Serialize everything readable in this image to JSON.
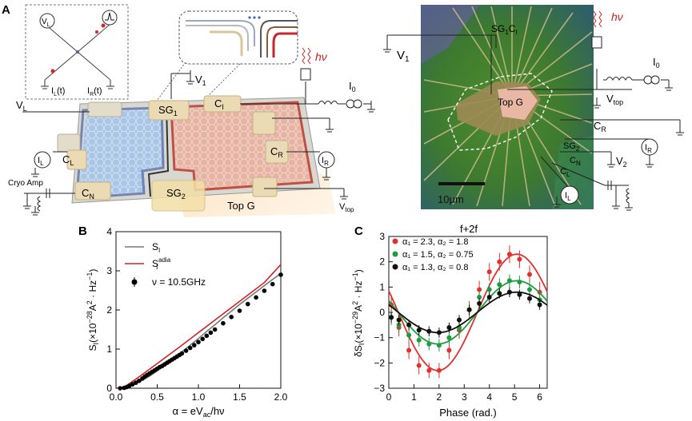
{
  "panels": {
    "a": {
      "label": "A",
      "inset_labels": {
        "VL": "V",
        "VL_sub": "L",
        "IL": "I",
        "IL_sub": "L",
        "IL_t": "(t)",
        "IR": "I",
        "IR_sub": "R",
        "IR_t": "(t)"
      },
      "device_labels": {
        "V_L": "V",
        "V_L_sub": "L",
        "V_1": "V",
        "V_1_sub": "1",
        "SG_1": "SG",
        "SG_1_sub": "1",
        "C_I": "C",
        "C_I_sub": "I",
        "hnu": "hν",
        "I_0": "I",
        "I_0_sub": "0",
        "I_L": "I",
        "I_L_sub": "L",
        "C_L": "C",
        "C_L_sub": "L",
        "C_R": "C",
        "C_R_sub": "R",
        "I_R": "I",
        "I_R_sub": "R",
        "cryo_amp": "Cryo Amp",
        "C_N": "C",
        "C_N_sub": "N",
        "SG_2": "SG",
        "SG_2_sub": "2",
        "top_g": "Top G",
        "V_top": "V",
        "V_top_sub": "top"
      },
      "micrograph_labels": {
        "V_1": "V",
        "V_1_sub": "1",
        "SG1CI": "SG",
        "SG1CI_sub1": "1",
        "SG1CI_C": "C",
        "SG1CI_sub2": "I",
        "hnu": "hν",
        "I_0": "I",
        "I_0_sub": "0",
        "top_g": "Top G",
        "V_top": "V",
        "V_top_sub": "top",
        "C_R": "C",
        "C_R_sub": "R",
        "SG_2": "SG",
        "SG_2_sub": "2",
        "C_N": "C",
        "C_N_sub": "N",
        "V_2": "V",
        "V_2_sub": "2",
        "C_L": "C",
        "C_L_sub": "L",
        "I_R": "I",
        "I_R_sub": "R",
        "I_L": "I",
        "I_L_sub": "L",
        "scale_bar": "10μm"
      }
    },
    "b": {
      "label": "B",
      "legend": [
        "S",
        "S",
        "ν = 10.5GHz"
      ],
      "legend_subs": [
        "I",
        "I"
      ],
      "legend_sup": "adia",
      "colors": {
        "S_I": "#777777",
        "S_adia": "#d42020",
        "data": "#000000"
      }
    },
    "c": {
      "label": "C",
      "title": "f+2f",
      "legend": [
        "α₁ = 2.3, α₂ = 1.8",
        "α₁ = 1.5, α₂ = 0.75",
        "α₁ = 1.3, α₂ = 0.8"
      ],
      "colors": [
        "#e03030",
        "#1f9a3e",
        "#111111"
      ]
    }
  },
  "chart_data": [
    {
      "type": "line",
      "panel": "B",
      "xlabel": "α = eV_ac/hν",
      "ylabel": "S_I(×10^−28 A^2 · Hz^−1)",
      "xlim": [
        0.0,
        2.0
      ],
      "ylim": [
        0,
        4
      ],
      "xticks": [
        "0.0",
        "0.5",
        "1.0",
        "1.5",
        "2.0"
      ],
      "yticks": [
        "0",
        "1",
        "2",
        "3",
        "4"
      ],
      "series": [
        {
          "name": "S_I",
          "style": "line",
          "x": [
            0.0,
            0.1,
            0.2,
            0.3,
            0.4,
            0.5,
            0.6,
            0.7,
            0.8,
            0.9,
            1.0,
            1.1,
            1.2,
            1.3,
            1.4,
            1.5,
            1.6,
            1.7,
            1.8,
            1.9,
            2.0
          ],
          "y": [
            0.0,
            0.02,
            0.08,
            0.18,
            0.3,
            0.44,
            0.6,
            0.76,
            0.93,
            1.1,
            1.27,
            1.45,
            1.62,
            1.8,
            1.97,
            2.14,
            2.3,
            2.46,
            2.62,
            2.78,
            2.93
          ]
        },
        {
          "name": "S_I^adia",
          "style": "line",
          "x": [
            0.0,
            0.1,
            0.3,
            0.5,
            0.8,
            1.0,
            1.2,
            1.5,
            1.8,
            2.0
          ],
          "y": [
            0.0,
            0.03,
            0.32,
            0.63,
            1.1,
            1.42,
            1.74,
            2.22,
            2.7,
            3.16
          ]
        },
        {
          "name": "ν = 10.5GHz",
          "style": "markers",
          "x": [
            0.05,
            0.1,
            0.13,
            0.16,
            0.2,
            0.24,
            0.28,
            0.32,
            0.35,
            0.38,
            0.41,
            0.44,
            0.47,
            0.5,
            0.53,
            0.56,
            0.59,
            0.62,
            0.65,
            0.68,
            0.71,
            0.74,
            0.77,
            0.8,
            0.85,
            0.9,
            0.95,
            1.0,
            1.05,
            1.1,
            1.15,
            1.2,
            1.3,
            1.4,
            1.5,
            1.6,
            1.7,
            1.8,
            1.9,
            2.0
          ],
          "y": [
            0.0,
            0.01,
            0.03,
            0.06,
            0.1,
            0.14,
            0.19,
            0.25,
            0.3,
            0.34,
            0.38,
            0.42,
            0.46,
            0.5,
            0.54,
            0.57,
            0.61,
            0.65,
            0.69,
            0.73,
            0.77,
            0.81,
            0.85,
            0.89,
            0.96,
            1.03,
            1.1,
            1.18,
            1.26,
            1.34,
            1.42,
            1.5,
            1.66,
            1.82,
            1.98,
            2.15,
            2.32,
            2.49,
            2.66,
            2.9
          ]
        }
      ]
    },
    {
      "type": "line",
      "panel": "C",
      "title": "f+2f",
      "xlabel": "Phase (rad.)",
      "ylabel": "δS_I(×10^−29 A^2 · Hz^−1)",
      "xlim": [
        0,
        6.3
      ],
      "ylim": [
        -3,
        3
      ],
      "xticks": [
        "0",
        "1",
        "2",
        "3",
        "4",
        "5",
        "6"
      ],
      "yticks": [
        "−3",
        "−2",
        "−1",
        "0",
        "1",
        "2",
        "3"
      ],
      "series": [
        {
          "name": "α₁ = 2.3, α₂ = 1.8",
          "fit": {
            "amplitude": 2.3,
            "phase_of_min": 1.95
          },
          "x": [
            0.1,
            0.4,
            0.8,
            1.2,
            1.6,
            2.0,
            2.4,
            2.8,
            3.2,
            3.6,
            4.0,
            4.4,
            4.8,
            5.2,
            5.6,
            6.0
          ],
          "y": [
            0.3,
            -0.6,
            -1.5,
            -2.1,
            -2.3,
            -2.3,
            -1.5,
            -0.7,
            0.1,
            0.9,
            1.6,
            2.0,
            2.3,
            2.1,
            1.5,
            0.8
          ],
          "err": [
            0.4,
            0.35,
            0.35,
            0.35,
            0.3,
            0.3,
            0.35,
            0.35,
            0.35,
            0.35,
            0.35,
            0.35,
            0.35,
            0.35,
            0.35,
            0.4
          ]
        },
        {
          "name": "α₁ = 1.5, α₂ = 0.75",
          "fit": {
            "amplitude": 1.25,
            "phase_of_min": 1.95
          },
          "x": [
            0.1,
            0.4,
            0.8,
            1.2,
            1.6,
            2.0,
            2.4,
            2.8,
            3.2,
            3.6,
            4.0,
            4.4,
            4.8,
            5.2,
            5.6,
            6.0
          ],
          "y": [
            -0.2,
            -0.5,
            -0.9,
            -1.1,
            -1.25,
            -1.3,
            -1.0,
            -0.6,
            0.1,
            0.6,
            0.9,
            1.1,
            1.25,
            1.2,
            0.9,
            0.5
          ],
          "err": [
            0.3,
            0.3,
            0.25,
            0.25,
            0.25,
            0.25,
            0.25,
            0.25,
            0.25,
            0.25,
            0.25,
            0.25,
            0.25,
            0.25,
            0.3,
            0.3
          ]
        },
        {
          "name": "α₁ = 1.3, α₂ = 0.8",
          "fit": {
            "amplitude": 0.8,
            "phase_of_min": 1.95
          },
          "x": [
            0.1,
            0.4,
            0.8,
            1.2,
            1.6,
            2.0,
            2.4,
            2.8,
            3.2,
            3.6,
            4.0,
            4.4,
            4.8,
            5.2,
            5.6,
            6.0
          ],
          "y": [
            -0.2,
            -0.3,
            -0.5,
            -0.7,
            -0.75,
            -0.8,
            -0.6,
            -0.3,
            0.1,
            0.35,
            0.6,
            0.75,
            0.8,
            0.7,
            0.55,
            0.3
          ],
          "err": [
            0.2,
            0.2,
            0.2,
            0.2,
            0.2,
            0.2,
            0.2,
            0.2,
            0.2,
            0.2,
            0.2,
            0.2,
            0.2,
            0.2,
            0.2,
            0.2
          ]
        }
      ]
    }
  ]
}
